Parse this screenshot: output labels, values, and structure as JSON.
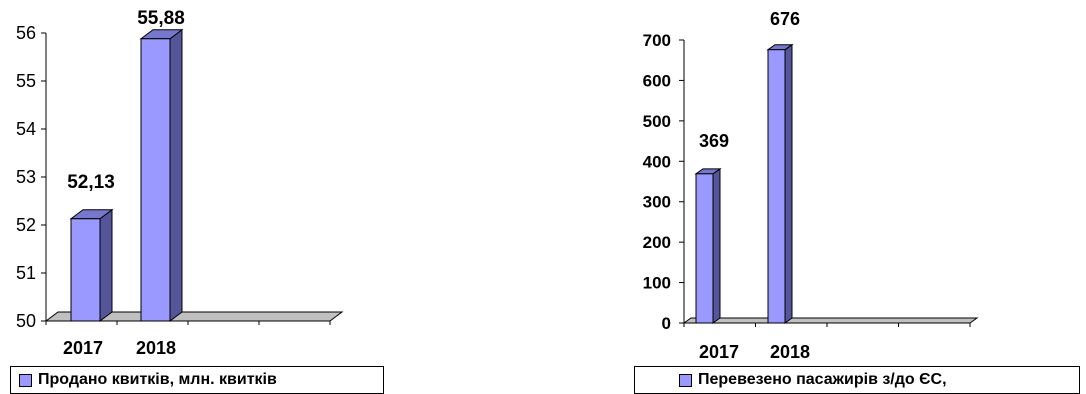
{
  "chart_data": [
    {
      "type": "bar",
      "categories": [
        "2017",
        "2018"
      ],
      "series": [
        {
          "name": "Продано квитків, млн. квитків",
          "values": [
            52.13,
            55.88
          ]
        }
      ],
      "data_labels": [
        "52,13",
        "55,88"
      ],
      "yticks": [
        "50",
        "51",
        "52",
        "53",
        "54",
        "55",
        "56"
      ],
      "ylim": [
        50,
        56
      ],
      "ytick_bold": false,
      "bar_color": "#9999ff",
      "legend": "bottom"
    },
    {
      "type": "bar",
      "categories": [
        "2017",
        "2018"
      ],
      "series": [
        {
          "name": "Перевезено пасажирів з/до ЄС,",
          "values": [
            369,
            676
          ]
        }
      ],
      "data_labels": [
        "369",
        "676"
      ],
      "yticks": [
        "0",
        "100",
        "200",
        "300",
        "400",
        "500",
        "600",
        "700"
      ],
      "ylim": [
        0,
        700
      ],
      "ytick_bold": true,
      "bar_color": "#9999ff",
      "legend": "bottom"
    }
  ]
}
